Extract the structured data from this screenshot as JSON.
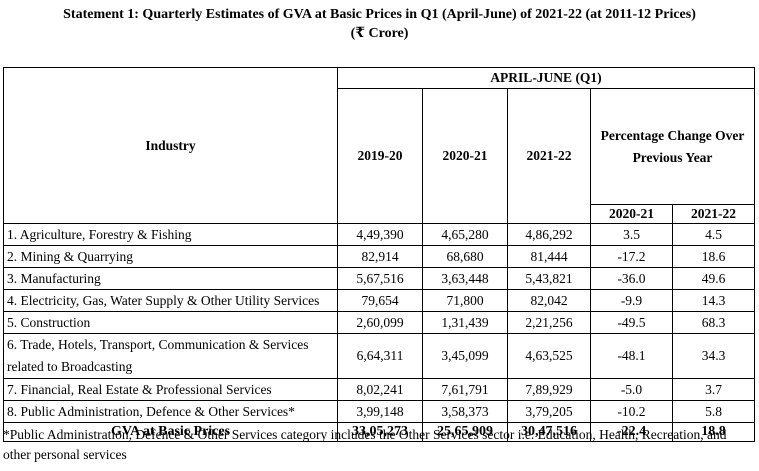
{
  "title": "Statement 1: Quarterly Estimates of GVA at Basic Prices in Q1 (April-June) of 2021-22 (at 2011-12 Prices)",
  "subtitle": "(₹ Crore)",
  "table": {
    "industry_header": "Industry",
    "period_header": "APRIL-JUNE (Q1)",
    "year_headers": [
      "2019-20",
      "2020-21",
      "2021-22"
    ],
    "pct_header": "Percentage Change Over Previous Year",
    "pct_year_headers": [
      "2020-21",
      "2021-22"
    ],
    "rows": [
      {
        "industry": "1. Agriculture, Forestry & Fishing",
        "v2019": "4,49,390",
        "v2020": "4,65,280",
        "v2021": "4,86,292",
        "p2020": "3.5",
        "p2021": "4.5"
      },
      {
        "industry": "2. Mining & Quarrying",
        "v2019": "82,914",
        "v2020": "68,680",
        "v2021": "81,444",
        "p2020": "-17.2",
        "p2021": "18.6"
      },
      {
        "industry": "3. Manufacturing",
        "v2019": "5,67,516",
        "v2020": "3,63,448",
        "v2021": "5,43,821",
        "p2020": "-36.0",
        "p2021": "49.6"
      },
      {
        "industry": "4. Electricity, Gas, Water Supply & Other Utility Services",
        "v2019": "79,654",
        "v2020": "71,800",
        "v2021": "82,042",
        "p2020": "-9.9",
        "p2021": "14.3"
      },
      {
        "industry": "5. Construction",
        "v2019": "2,60,099",
        "v2020": "1,31,439",
        "v2021": "2,21,256",
        "p2020": "-49.5",
        "p2021": "68.3"
      },
      {
        "industry": "6. Trade, Hotels, Transport, Communication & Services related to Broadcasting",
        "v2019": "6,64,311",
        "v2020": "3,45,099",
        "v2021": "4,63,525",
        "p2020": "-48.1",
        "p2021": "34.3"
      },
      {
        "industry": "7. Financial, Real Estate & Professional Services",
        "v2019": "8,02,241",
        "v2020": "7,61,791",
        "v2021": "7,89,929",
        "p2020": "-5.0",
        "p2021": "3.7"
      },
      {
        "industry": "8. Public Administration, Defence & Other Services*",
        "v2019": "3,99,148",
        "v2020": "3,58,373",
        "v2021": "3,79,205",
        "p2020": "-10.2",
        "p2021": "5.8"
      }
    ],
    "total": {
      "industry": "GVA at Basic Prices",
      "v2019": "33,05,273",
      "v2020": "25,65,909",
      "v2021": "30,47,516",
      "p2020": "-22.4",
      "p2021": "18.8"
    }
  },
  "footnote": "*Public Administration, Defence & Other Services category includes the Other Services sector i.e. Education, Health, Recreation, and other personal services"
}
